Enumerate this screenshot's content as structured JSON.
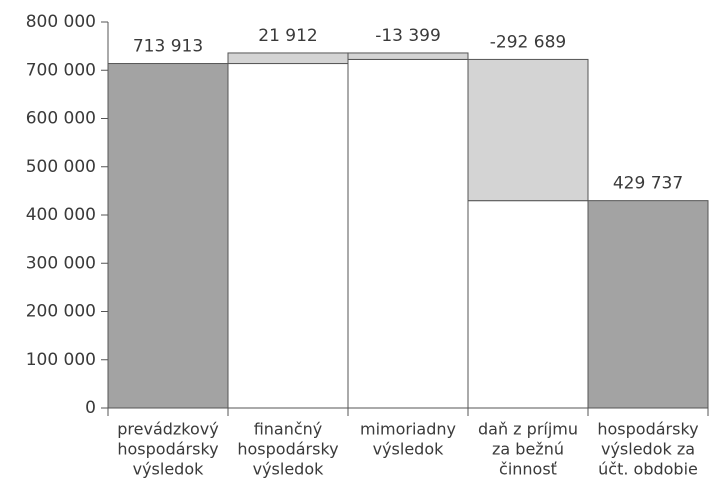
{
  "chart_data": {
    "type": "waterfall",
    "categories": [
      [
        "prevádzkový",
        "hospodársky",
        "výsledok"
      ],
      [
        "finančný",
        "hospodársky",
        "výsledok"
      ],
      [
        "mimoriadny",
        "výsledok"
      ],
      [
        "daň z príjmu",
        "za bežnú",
        "činnosť"
      ],
      [
        "hospodársky",
        "výsledok za",
        "účt. obdobie"
      ]
    ],
    "values": [
      713913,
      21912,
      -13399,
      -292689,
      429737
    ],
    "value_labels": [
      "713 913",
      "21 912",
      "-13 399",
      "-292 689",
      "429 737"
    ],
    "total_color": "#a3a3a3",
    "step_color": "#d4d4d4",
    "ylim": [
      0,
      800000
    ],
    "yticks": [
      {
        "value": 0,
        "label": "0"
      },
      {
        "value": 100000,
        "label": "100 000"
      },
      {
        "value": 200000,
        "label": "200 000"
      },
      {
        "value": 300000,
        "label": "300 000"
      },
      {
        "value": 400000,
        "label": "400 000"
      },
      {
        "value": 500000,
        "label": "500 000"
      },
      {
        "value": 600000,
        "label": "600 000"
      },
      {
        "value": 700000,
        "label": "700 000"
      },
      {
        "value": 800000,
        "label": "800 000"
      }
    ],
    "grid": false
  }
}
